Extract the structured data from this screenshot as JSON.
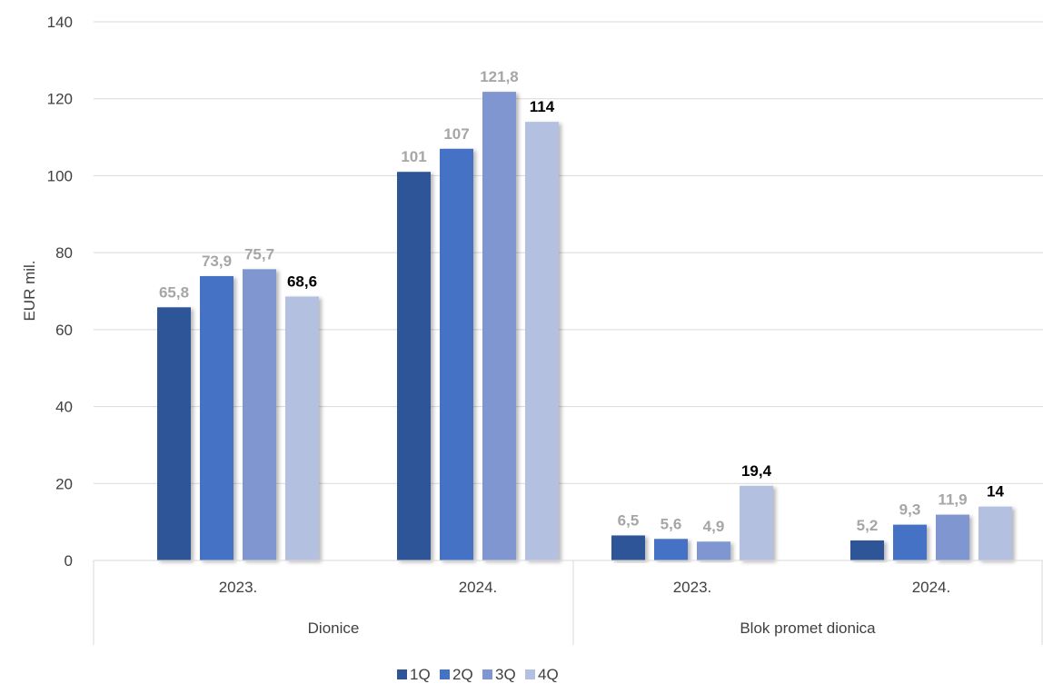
{
  "chart_data": {
    "type": "bar",
    "title": "",
    "ylabel": "EUR mil.",
    "ylim": [
      0,
      140
    ],
    "yticks": [
      0,
      20,
      40,
      60,
      80,
      100,
      120,
      140
    ],
    "grid": true,
    "legend_position": "bottom",
    "groups": [
      {
        "label": "Dionice",
        "categories": [
          "2023.",
          "2024."
        ]
      },
      {
        "label": "Blok promet dionica",
        "categories": [
          "2023.",
          "2024."
        ]
      }
    ],
    "categories": [
      "2023.",
      "2024.",
      "2023.",
      "2024."
    ],
    "series": [
      {
        "name": "1Q",
        "color": "#2f5597",
        "values": [
          65.8,
          101,
          6.5,
          5.2
        ],
        "labels": [
          "65,8",
          "101",
          "6,5",
          "5,2"
        ]
      },
      {
        "name": "2Q",
        "color": "#4472c4",
        "values": [
          73.9,
          107,
          5.6,
          9.3
        ],
        "labels": [
          "73,9",
          "107",
          "5,6",
          "9,3"
        ]
      },
      {
        "name": "3Q",
        "color": "#7f96d0",
        "values": [
          75.7,
          121.8,
          4.9,
          11.9
        ],
        "labels": [
          "75,7",
          "121,8",
          "4,9",
          "11,9"
        ]
      },
      {
        "name": "4Q",
        "color": "#b4c0e0",
        "values": [
          68.6,
          114,
          19.4,
          14
        ],
        "labels": [
          "68,6",
          "114",
          "19,4",
          "14"
        ]
      }
    ],
    "label_colors": {
      "past": "#a6a6a6",
      "latest": "#000000"
    }
  }
}
